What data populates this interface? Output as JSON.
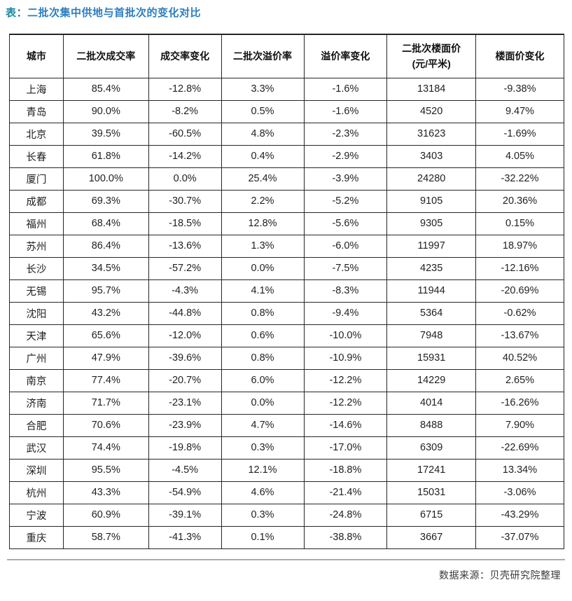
{
  "page": {
    "title_prefix": "表：",
    "title": "二批次集中供地与首批次的变化对比",
    "footer": "数据来源：贝壳研究院整理"
  },
  "colors": {
    "title_prefix": "#1a87a0",
    "title_text": "#2b7ec2",
    "table_border": "#262626",
    "divider": "#ababab"
  },
  "table": {
    "columns": [
      "城市",
      "二批次成交率",
      "成交率变化",
      "二批次溢价率",
      "溢价率变化",
      "二批次楼面价\n(元/平米)",
      "楼面价变化"
    ],
    "rows": [
      [
        "上海",
        "85.4%",
        "-12.8%",
        "3.3%",
        "-1.6%",
        "13184",
        "-9.38%"
      ],
      [
        "青岛",
        "90.0%",
        "-8.2%",
        "0.5%",
        "-1.6%",
        "4520",
        "9.47%"
      ],
      [
        "北京",
        "39.5%",
        "-60.5%",
        "4.8%",
        "-2.3%",
        "31623",
        "-1.69%"
      ],
      [
        "长春",
        "61.8%",
        "-14.2%",
        "0.4%",
        "-2.9%",
        "3403",
        "4.05%"
      ],
      [
        "厦门",
        "100.0%",
        "0.0%",
        "25.4%",
        "-3.9%",
        "24280",
        "-32.22%"
      ],
      [
        "成都",
        "69.3%",
        "-30.7%",
        "2.2%",
        "-5.2%",
        "9105",
        "20.36%"
      ],
      [
        "福州",
        "68.4%",
        "-18.5%",
        "12.8%",
        "-5.6%",
        "9305",
        "0.15%"
      ],
      [
        "苏州",
        "86.4%",
        "-13.6%",
        "1.3%",
        "-6.0%",
        "11997",
        "18.97%"
      ],
      [
        "长沙",
        "34.5%",
        "-57.2%",
        "0.0%",
        "-7.5%",
        "4235",
        "-12.16%"
      ],
      [
        "无锡",
        "95.7%",
        "-4.3%",
        "4.1%",
        "-8.3%",
        "11944",
        "-20.69%"
      ],
      [
        "沈阳",
        "43.2%",
        "-44.8%",
        "0.8%",
        "-9.4%",
        "5364",
        "-0.62%"
      ],
      [
        "天津",
        "65.6%",
        "-12.0%",
        "0.6%",
        "-10.0%",
        "7948",
        "-13.67%"
      ],
      [
        "广州",
        "47.9%",
        "-39.6%",
        "0.8%",
        "-10.9%",
        "15931",
        "40.52%"
      ],
      [
        "南京",
        "77.4%",
        "-20.7%",
        "6.0%",
        "-12.2%",
        "14229",
        "2.65%"
      ],
      [
        "济南",
        "71.7%",
        "-23.1%",
        "0.0%",
        "-12.2%",
        "4014",
        "-16.26%"
      ],
      [
        "合肥",
        "70.6%",
        "-23.9%",
        "4.7%",
        "-14.6%",
        "8488",
        "7.90%"
      ],
      [
        "武汉",
        "74.4%",
        "-19.8%",
        "0.3%",
        "-17.0%",
        "6309",
        "-22.69%"
      ],
      [
        "深圳",
        "95.5%",
        "-4.5%",
        "12.1%",
        "-18.8%",
        "17241",
        "13.34%"
      ],
      [
        "杭州",
        "43.3%",
        "-54.9%",
        "4.6%",
        "-21.4%",
        "15031",
        "-3.06%"
      ],
      [
        "宁波",
        "60.9%",
        "-39.1%",
        "0.3%",
        "-24.8%",
        "6715",
        "-43.29%"
      ],
      [
        "重庆",
        "58.7%",
        "-41.3%",
        "0.1%",
        "-38.8%",
        "3667",
        "-37.07%"
      ]
    ]
  }
}
